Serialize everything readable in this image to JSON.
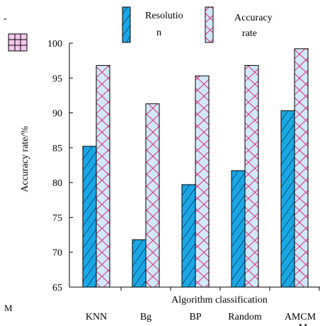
{
  "chart_data": {
    "type": "bar",
    "title": "",
    "xlabel": "Algorithm classification",
    "ylabel": "Accuracy rate/%",
    "ylim": [
      65,
      100
    ],
    "yticks": [
      65,
      70,
      75,
      80,
      85,
      90,
      95,
      100
    ],
    "categories": [
      {
        "lines": [
          "KNN"
        ]
      },
      {
        "lines": [
          "Bg"
        ]
      },
      {
        "lines": [
          "BP"
        ]
      },
      {
        "lines": [
          "Random"
        ]
      },
      {
        "lines": [
          "AMCM",
          "M"
        ]
      }
    ],
    "series": [
      {
        "name_lines": [
          "Resolutio",
          "n"
        ],
        "values": [
          85.2,
          71.8,
          79.7,
          81.7,
          90.3
        ],
        "color": "#1aa7e6",
        "pattern": "diagonal-hatch"
      },
      {
        "name_lines": [
          "Accuracy",
          "rate"
        ],
        "values": [
          96.8,
          91.3,
          95.3,
          96.8,
          99.2
        ],
        "color": "#cfe9fb",
        "pattern": "zigzag-magenta"
      }
    ],
    "legend_position": "top",
    "stray_marks": {
      "dash": "-",
      "letter": "M"
    },
    "colors": {
      "axis": "#000000",
      "zigzag": "#e0307a",
      "hatch": "#000000"
    }
  }
}
